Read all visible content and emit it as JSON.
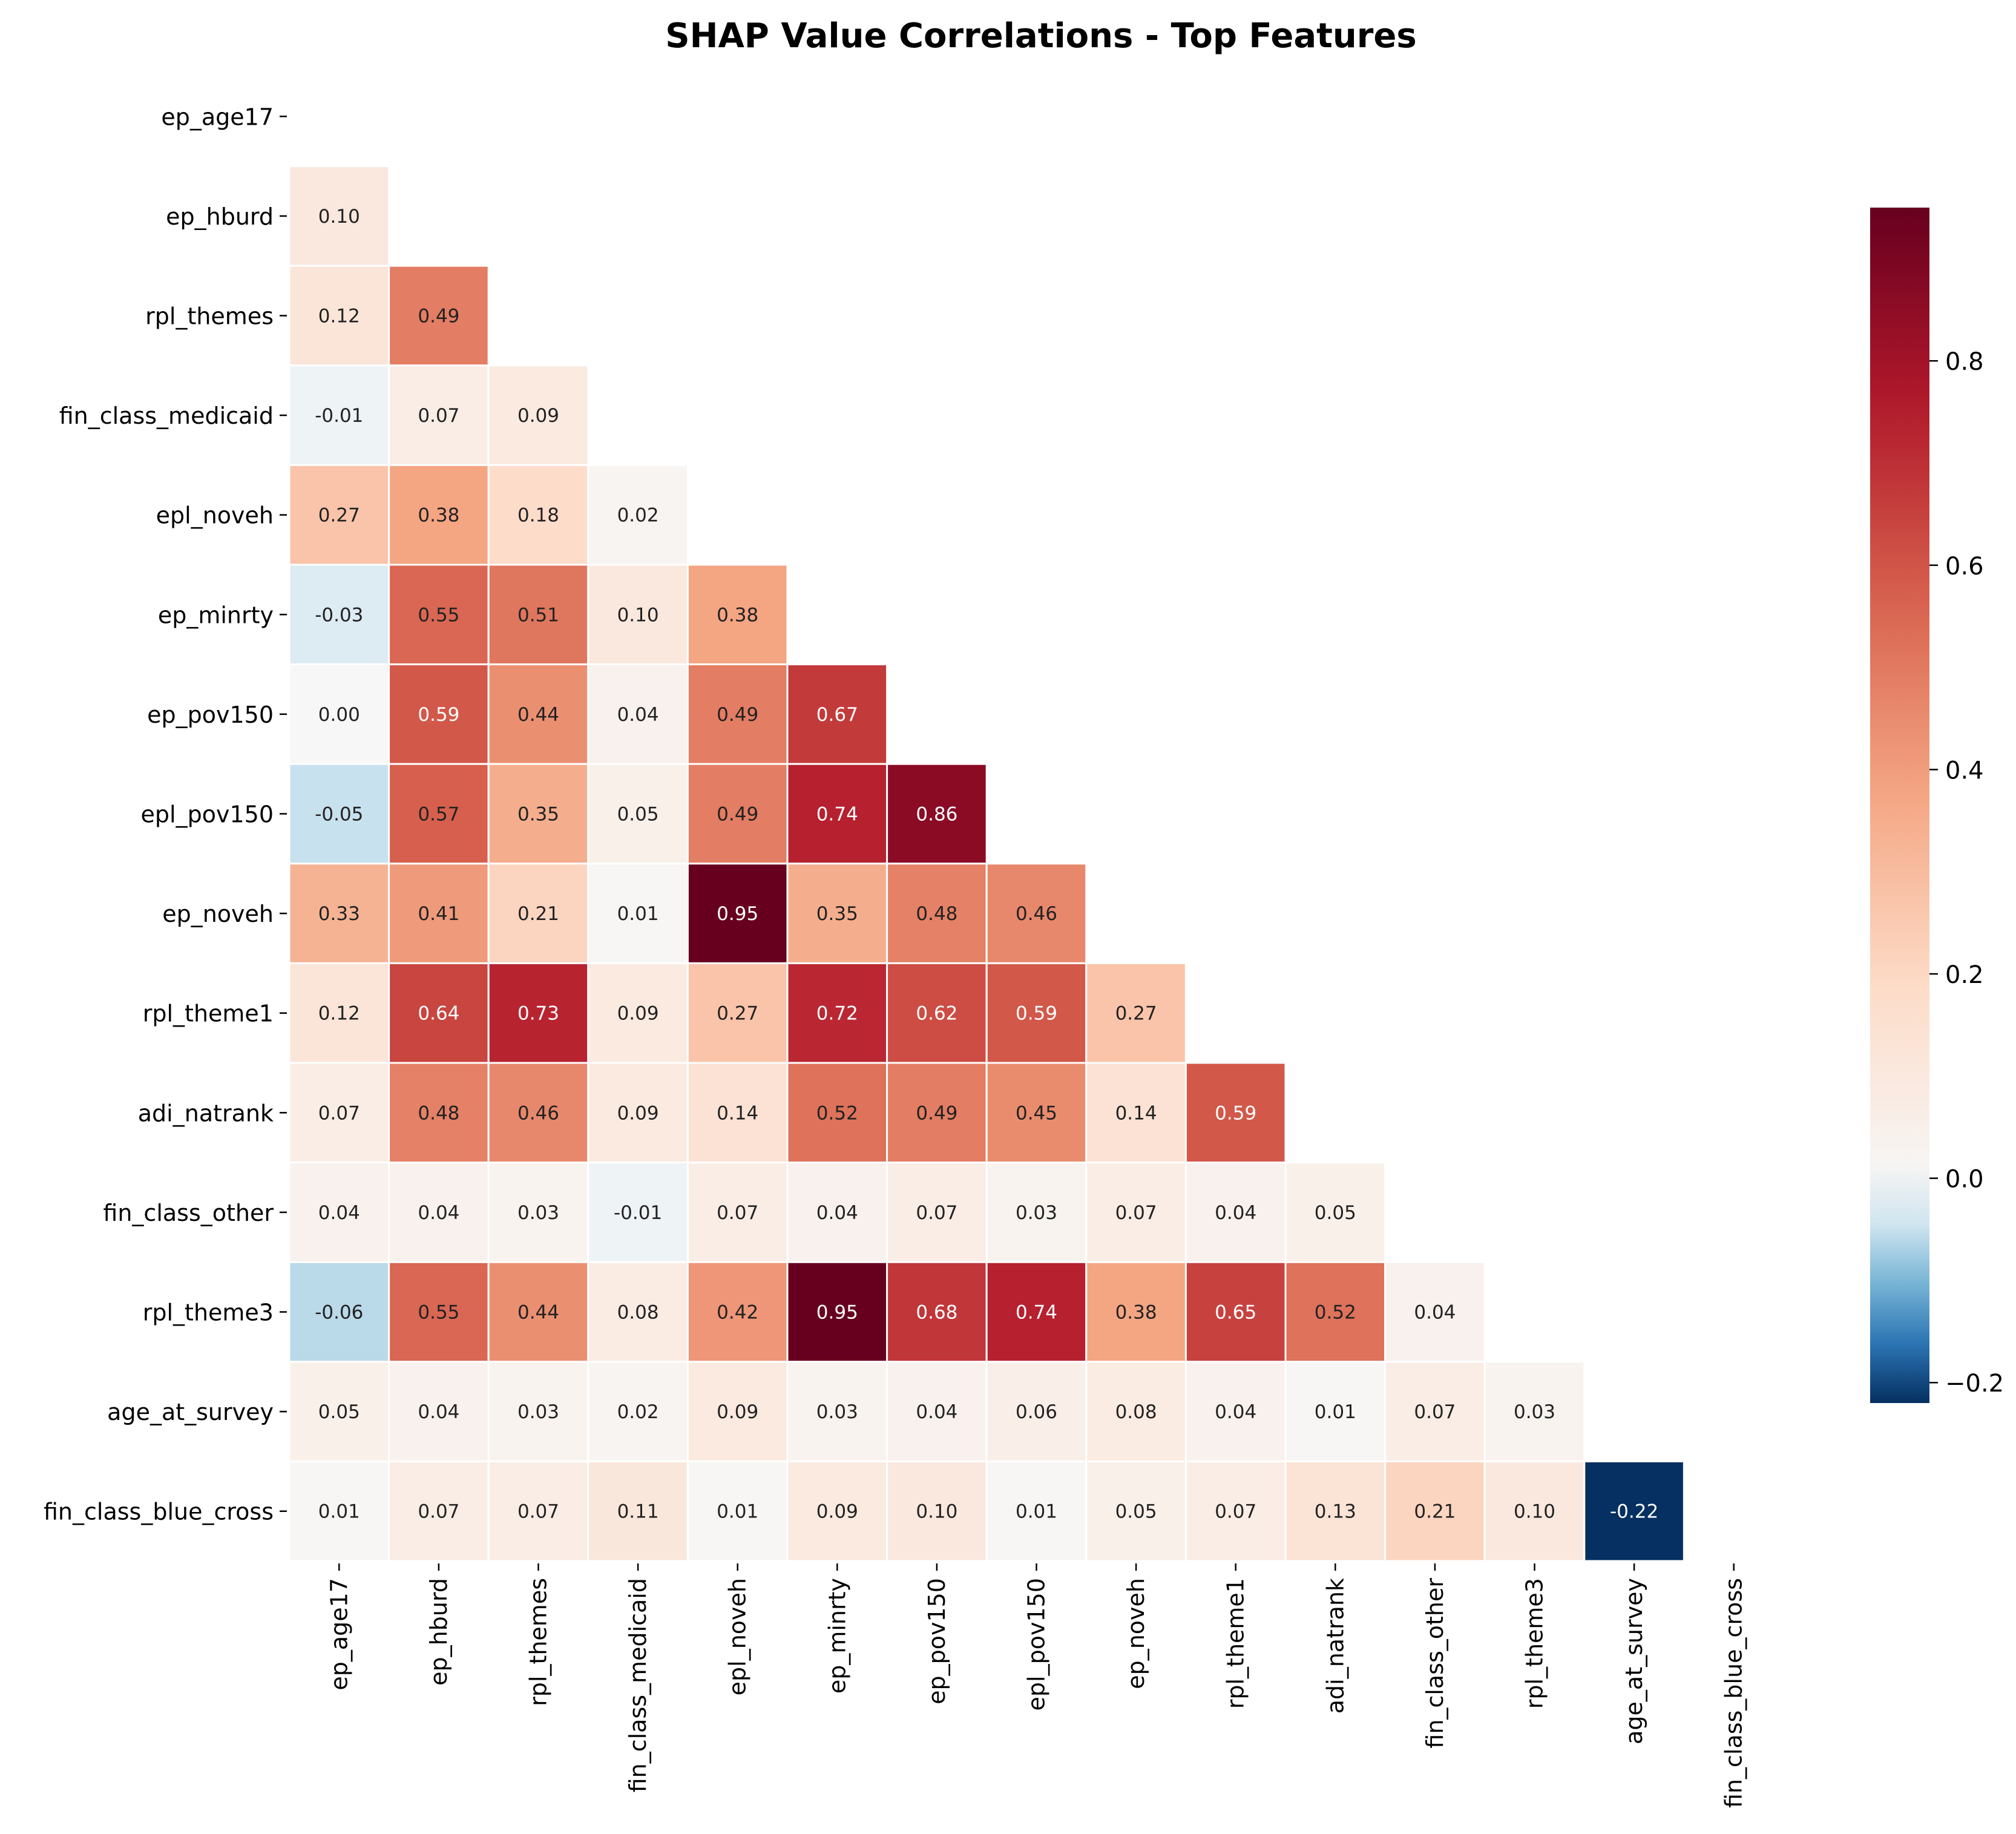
{
  "chart_data": {
    "type": "heatmap",
    "title": "SHAP Value Correlations - Top Features",
    "features": [
      "ep_age17",
      "ep_hburd",
      "rpl_themes",
      "fin_class_medicaid",
      "epl_noveh",
      "ep_minrty",
      "ep_pov150",
      "epl_pov150",
      "ep_noveh",
      "rpl_theme1",
      "adi_natrank",
      "fin_class_other",
      "rpl_theme3",
      "age_at_survey",
      "fin_class_blue_cross"
    ],
    "mask": "upper-triangle-and-diagonal",
    "values": [
      [],
      [
        0.1
      ],
      [
        0.12,
        0.49
      ],
      [
        -0.01,
        0.07,
        0.09
      ],
      [
        0.27,
        0.38,
        0.18,
        0.02
      ],
      [
        -0.03,
        0.55,
        0.51,
        0.1,
        0.38
      ],
      [
        0.0,
        0.59,
        0.44,
        0.04,
        0.49,
        0.67
      ],
      [
        -0.05,
        0.57,
        0.35,
        0.05,
        0.49,
        0.74,
        0.86
      ],
      [
        0.33,
        0.41,
        0.21,
        0.01,
        0.95,
        0.35,
        0.48,
        0.46
      ],
      [
        0.12,
        0.64,
        0.73,
        0.09,
        0.27,
        0.72,
        0.62,
        0.59,
        0.27
      ],
      [
        0.07,
        0.48,
        0.46,
        0.09,
        0.14,
        0.52,
        0.49,
        0.45,
        0.14,
        0.59
      ],
      [
        0.04,
        0.04,
        0.03,
        -0.01,
        0.07,
        0.04,
        0.07,
        0.03,
        0.07,
        0.04,
        0.05
      ],
      [
        -0.06,
        0.55,
        0.44,
        0.08,
        0.42,
        0.95,
        0.68,
        0.74,
        0.38,
        0.65,
        0.52,
        0.04
      ],
      [
        0.05,
        0.04,
        0.03,
        0.02,
        0.09,
        0.03,
        0.04,
        0.06,
        0.08,
        0.04,
        0.01,
        0.07,
        0.03
      ],
      [
        0.01,
        0.07,
        0.07,
        0.11,
        0.01,
        0.09,
        0.1,
        0.01,
        0.05,
        0.07,
        0.13,
        0.21,
        0.1,
        -0.22
      ]
    ],
    "value_format": "2 decimals",
    "colormap": "RdBu_r",
    "color_range": [
      -0.22,
      0.95
    ],
    "color_center": 0,
    "colorbar": {
      "placement": "right",
      "ticks": [
        "-0.2",
        "0.0",
        "0.2",
        "0.4",
        "0.6",
        "0.8"
      ]
    },
    "cell_border_color": "#ffffff"
  }
}
